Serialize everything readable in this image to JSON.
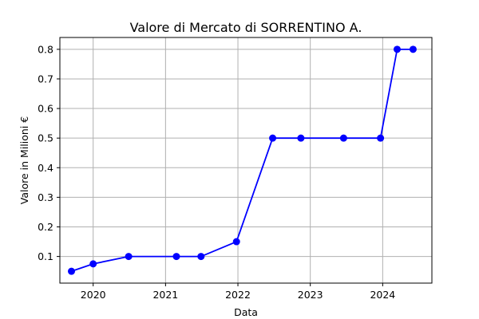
{
  "chart_data": {
    "type": "line",
    "title": "Valore di Mercato di SORRENTINO A.",
    "xlabel": "Data",
    "ylabel": "Valore in Milioni €",
    "xlim": [
      2019.54,
      2024.68
    ],
    "ylim": [
      0.01,
      0.84
    ],
    "xticks": [
      2020,
      2021,
      2022,
      2023,
      2024
    ],
    "xtick_labels": [
      "2020",
      "2021",
      "2022",
      "2023",
      "2024"
    ],
    "yticks": [
      0.1,
      0.2,
      0.3,
      0.4,
      0.5,
      0.6,
      0.7,
      0.8
    ],
    "ytick_labels": [
      "0.1",
      "0.2",
      "0.3",
      "0.4",
      "0.5",
      "0.6",
      "0.7",
      "0.8"
    ],
    "grid": true,
    "series": [
      {
        "name": "Valore di Mercato",
        "color": "#0000ff",
        "x": [
          2019.7,
          2020.0,
          2020.49,
          2021.15,
          2021.49,
          2021.98,
          2022.48,
          2022.87,
          2023.46,
          2023.97,
          2024.2,
          2024.42
        ],
        "y": [
          0.05,
          0.075,
          0.1,
          0.1,
          0.1,
          0.15,
          0.5,
          0.5,
          0.5,
          0.5,
          0.8,
          0.8
        ]
      }
    ]
  }
}
